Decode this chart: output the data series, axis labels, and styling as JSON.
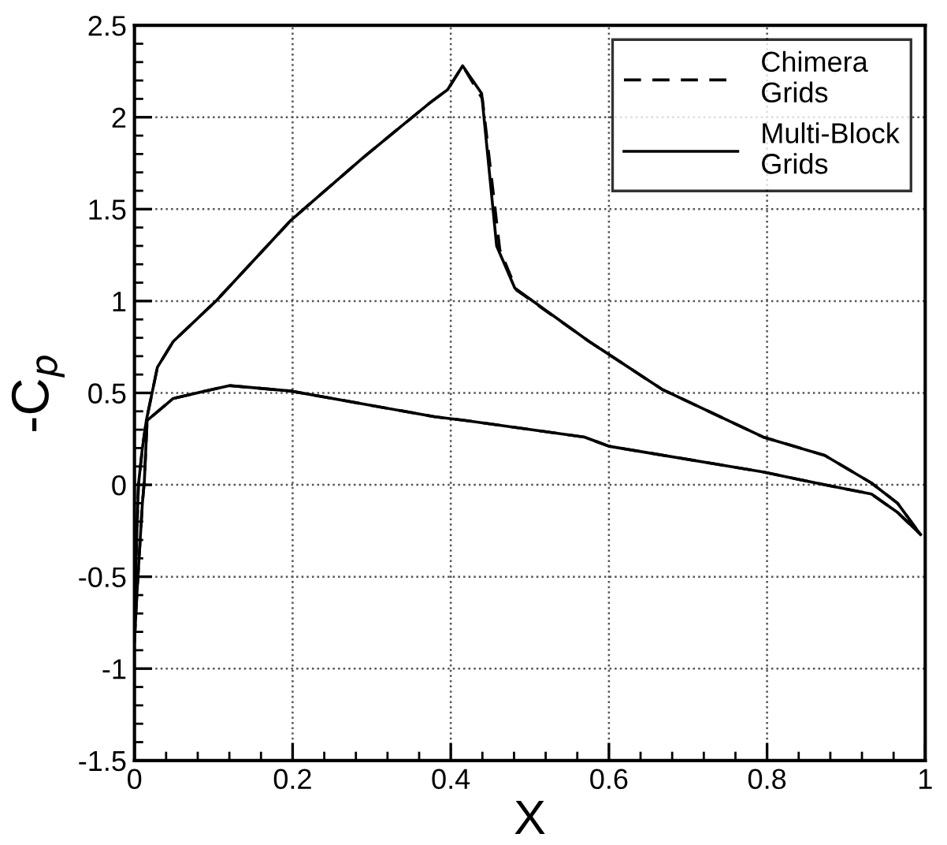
{
  "chart_data": {
    "type": "line",
    "xlabel": "X",
    "ylabel": "-C$_{p}$",
    "xlim": [
      0,
      1
    ],
    "ylim": [
      -1.5,
      2.5
    ],
    "xticks": [
      0,
      0.2,
      0.4,
      0.6,
      0.8,
      1
    ],
    "yticks": [
      -1.5,
      -1,
      -0.5,
      0,
      0.5,
      1,
      1.5,
      2,
      2.5
    ],
    "grid": true,
    "legend": "top right",
    "series": [
      {
        "name": "Chimera\nGrids",
        "color": "#000000",
        "line_style": "dashed",
        "x": [
          0.0,
          0.002,
          0.005,
          0.01,
          0.015,
          0.029,
          0.049,
          0.103,
          0.198,
          0.289,
          0.374,
          0.396,
          0.415,
          0.44,
          0.462,
          0.483,
          0.575,
          0.667,
          0.795,
          0.873,
          0.932,
          0.965,
          0.994
        ],
        "values": [
          -0.85,
          -0.4,
          0.0,
          0.2,
          0.35,
          0.64,
          0.78,
          1.0,
          1.44,
          1.78,
          2.08,
          2.15,
          2.28,
          2.1,
          1.28,
          1.06,
          0.78,
          0.52,
          0.26,
          0.16,
          0.01,
          -0.1,
          -0.27
        ]
      },
      {
        "color": "#000000",
        "line_style": "dashed",
        "x": [
          0.0,
          0.003,
          0.01,
          0.0125,
          0.016,
          0.049,
          0.12,
          0.198,
          0.38,
          0.419,
          0.569,
          0.6,
          0.795,
          0.873,
          0.932,
          0.965,
          0.994
        ],
        "values": [
          -0.85,
          -0.6,
          -0.1,
          0.02,
          0.35,
          0.47,
          0.54,
          0.51,
          0.37,
          0.35,
          0.26,
          0.21,
          0.07,
          0.0,
          -0.05,
          -0.15,
          -0.27
        ]
      },
      {
        "name": "Multi-Block\nGrids",
        "color": "#000000",
        "line_style": "solid",
        "x": [
          0.0,
          0.002,
          0.005,
          0.01,
          0.015,
          0.029,
          0.049,
          0.103,
          0.198,
          0.289,
          0.374,
          0.396,
          0.415,
          0.439,
          0.458,
          0.481,
          0.575,
          0.667,
          0.795,
          0.873,
          0.932,
          0.965,
          0.994
        ],
        "values": [
          -0.85,
          -0.4,
          0.0,
          0.2,
          0.35,
          0.64,
          0.78,
          1.0,
          1.44,
          1.78,
          2.08,
          2.15,
          2.28,
          2.13,
          1.3,
          1.07,
          0.78,
          0.52,
          0.26,
          0.16,
          0.01,
          -0.1,
          -0.27
        ]
      },
      {
        "color": "#000000",
        "line_style": "solid",
        "x": [
          0.0,
          0.003,
          0.01,
          0.0125,
          0.016,
          0.049,
          0.12,
          0.198,
          0.38,
          0.419,
          0.569,
          0.6,
          0.795,
          0.873,
          0.932,
          0.965,
          0.994
        ],
        "values": [
          -0.85,
          -0.6,
          -0.1,
          0.02,
          0.35,
          0.47,
          0.54,
          0.51,
          0.37,
          0.35,
          0.26,
          0.21,
          0.07,
          0.0,
          -0.05,
          -0.15,
          -0.27
        ]
      }
    ]
  }
}
